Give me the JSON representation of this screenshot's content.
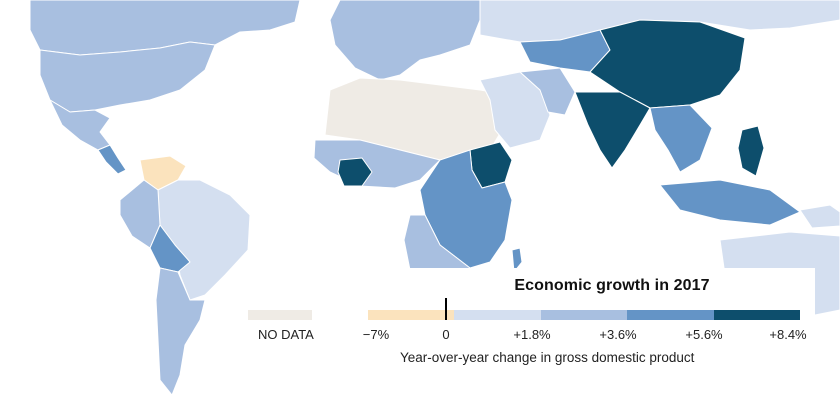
{
  "legend": {
    "title": "Economic growth in 2017",
    "no_data_label": "NO DATA",
    "ticks": [
      "−7%",
      "0",
      "+1.8%",
      "+3.6%",
      "+5.6%",
      "+8.4%"
    ],
    "subtitle": "Year-over-year change in gross domestic product",
    "colors": {
      "no_data": "#efebe5",
      "negative": "#fbe3bd",
      "bin_0_1_8": "#d4dff0",
      "bin_1_8_3_6": "#a8bfe0",
      "bin_3_6_5_6": "#6494c6",
      "bin_5_6_8_4": "#0d4e6c"
    }
  },
  "regions": [
    {
      "name": "canada-region",
      "class": "bin_1_8_3_6"
    },
    {
      "name": "usa-region",
      "class": "bin_1_8_3_6"
    },
    {
      "name": "mexico-region",
      "class": "bin_1_8_3_6"
    },
    {
      "name": "central-america-region",
      "class": "bin_3_6_5_6"
    },
    {
      "name": "venezuela-region",
      "class": "negative"
    },
    {
      "name": "brazil-region",
      "class": "bin_0_1_8"
    },
    {
      "name": "peru-region",
      "class": "bin_1_8_3_6"
    },
    {
      "name": "bolivia-region",
      "class": "bin_3_6_5_6"
    },
    {
      "name": "argentina-region",
      "class": "bin_1_8_3_6"
    },
    {
      "name": "europe-region",
      "class": "bin_1_8_3_6"
    },
    {
      "name": "russia-region",
      "class": "bin_0_1_8"
    },
    {
      "name": "north-africa-region",
      "class": "no_data"
    },
    {
      "name": "west-africa-region",
      "class": "bin_1_8_3_6"
    },
    {
      "name": "ivory-coast-region",
      "class": "bin_5_6_8_4"
    },
    {
      "name": "ethiopia-region",
      "class": "bin_5_6_8_4"
    },
    {
      "name": "east-africa-region",
      "class": "bin_3_6_5_6"
    },
    {
      "name": "southern-africa-region",
      "class": "bin_1_8_3_6"
    },
    {
      "name": "middle-east-region",
      "class": "bin_0_1_8"
    },
    {
      "name": "iran-region",
      "class": "bin_1_8_3_6"
    },
    {
      "name": "central-asia-region",
      "class": "bin_3_6_5_6"
    },
    {
      "name": "china-region",
      "class": "bin_5_6_8_4"
    },
    {
      "name": "india-region",
      "class": "bin_5_6_8_4"
    },
    {
      "name": "southeast-asia-region",
      "class": "bin_3_6_5_6"
    },
    {
      "name": "indonesia-region",
      "class": "bin_3_6_5_6"
    },
    {
      "name": "philippines-region",
      "class": "bin_5_6_8_4"
    },
    {
      "name": "australia-region",
      "class": "bin_0_1_8"
    },
    {
      "name": "new-guinea-region",
      "class": "bin_0_1_8"
    }
  ]
}
